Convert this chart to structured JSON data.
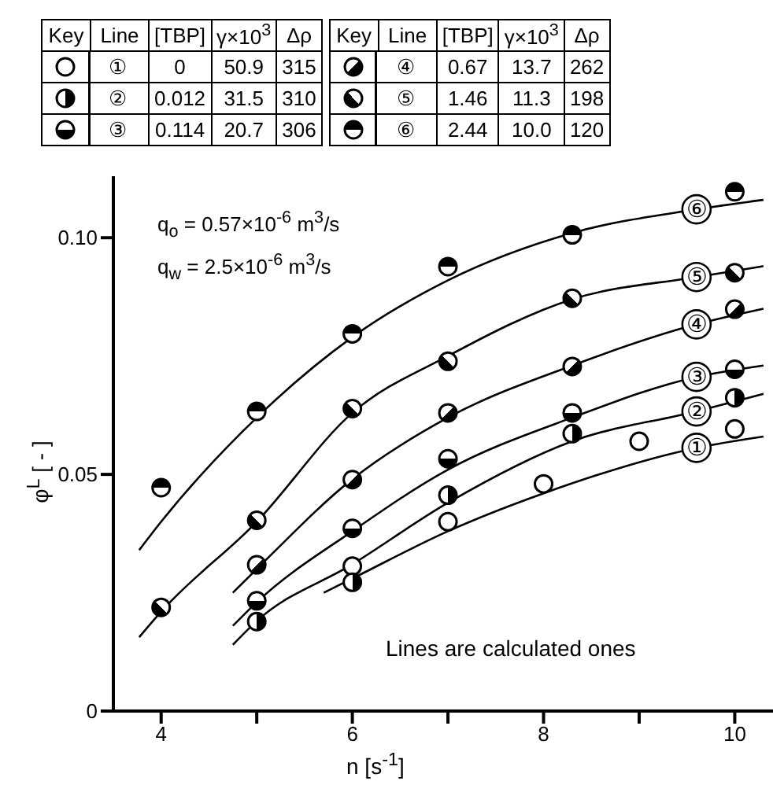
{
  "chart_data": {
    "type": "scatter",
    "xlabel": "n   [s$^{-1}$]",
    "ylabel": "φ$^{L}$  [ - ]",
    "marker": "circle",
    "legend": "top",
    "xlim": [
      3.5,
      10.4
    ],
    "xticks": [
      4,
      {
        "value": 5,
        "label": null
      },
      6,
      {
        "value": 7,
        "label": null
      },
      8,
      {
        "value": 9,
        "label": null
      },
      10
    ],
    "ylim": [
      0,
      0.113
    ],
    "yticks": [
      0,
      0.05,
      {
        "value": 0.1,
        "label": "0.10"
      }
    ],
    "annotations": [
      "Key",
      "Line",
      "[TBP]",
      "γ×10$^{3}$",
      "Δρ",
      "0",
      "50.9",
      "315",
      "0.012",
      "31.5",
      "310",
      "0.114",
      "20.7",
      "306",
      "0.67",
      "13.7",
      "262",
      "1.46",
      "11.3",
      "198",
      "2.44",
      "10.0",
      "120",
      "q$_{o}$ = 0.57×10$^{-6}$ m$^{3}$/s",
      "q$_{w}$ = 2.5×10$^{-6}$ m$^{3}$/s",
      "Lines are calculated ones"
    ],
    "series": [
      {
        "name": "①",
        "color": "#000000",
        "x": [
          6,
          7,
          8,
          9,
          10
        ],
        "values": [
          0.0306,
          0.04,
          0.048,
          0.057,
          0.0596
        ]
      },
      {
        "name": "②",
        "color": "#000000",
        "x": [
          5,
          6,
          7,
          8.3,
          10
        ],
        "values": [
          0.0189,
          0.0272,
          0.0456,
          0.0586,
          0.0662
        ]
      },
      {
        "name": "③",
        "color": "#000000",
        "x": [
          5,
          6,
          7,
          8.3,
          10
        ],
        "values": [
          0.0233,
          0.0386,
          0.0533,
          0.063,
          0.0722
        ]
      },
      {
        "name": "④",
        "color": "#000000",
        "x": [
          5,
          6,
          7,
          8.3,
          10
        ],
        "values": [
          0.0309,
          0.0489,
          0.063,
          0.0728,
          0.0849
        ]
      },
      {
        "name": "⑤",
        "color": "#000000",
        "x": [
          4,
          5,
          6,
          7,
          8.3,
          10
        ],
        "values": [
          0.0219,
          0.0403,
          0.0639,
          0.0739,
          0.0872,
          0.0926
        ]
      },
      {
        "name": "⑥",
        "color": "#000000",
        "x": [
          4,
          5,
          6,
          7,
          8.3,
          10
        ],
        "values": [
          0.0472,
          0.0633,
          0.0797,
          0.0939,
          0.1006,
          0.1097
        ]
      },
      {
        "type": "line",
        "marker": "none",
        "color": "#000000",
        "x": [
          5.7,
          6,
          7,
          8,
          9.6,
          10.3
        ],
        "values": [
          0.025,
          0.028,
          0.038,
          0.046,
          0.0556,
          0.058
        ]
      },
      {
        "type": "line",
        "marker": "none",
        "color": "#000000",
        "x": [
          4.75,
          5,
          6,
          7,
          8.3,
          9.6,
          10.3
        ],
        "values": [
          0.014,
          0.019,
          0.031,
          0.044,
          0.057,
          0.0633,
          0.067
        ]
      },
      {
        "type": "line",
        "marker": "none",
        "color": "#000000",
        "x": [
          4.75,
          5,
          6,
          7,
          8.3,
          9.6,
          10.3
        ],
        "values": [
          0.018,
          0.023,
          0.038,
          0.051,
          0.062,
          0.0706,
          0.073
        ]
      },
      {
        "type": "line",
        "marker": "none",
        "color": "#000000",
        "x": [
          4.75,
          5,
          6,
          7,
          8.3,
          9.6,
          10.3
        ],
        "values": [
          0.025,
          0.03,
          0.049,
          0.062,
          0.073,
          0.0817,
          0.085
        ]
      },
      {
        "type": "line",
        "marker": "none",
        "color": "#000000",
        "x": [
          3.77,
          4,
          5,
          6,
          7,
          8.3,
          9.6,
          10.3
        ],
        "values": [
          0.0156,
          0.021,
          0.04,
          0.063,
          0.075,
          0.087,
          0.0917,
          0.094
        ]
      },
      {
        "type": "line",
        "marker": "none",
        "color": "#000000",
        "x": [
          3.77,
          4,
          5,
          6,
          7,
          8.3,
          9.6,
          10.3
        ],
        "values": [
          0.034,
          0.04,
          0.062,
          0.079,
          0.091,
          0.101,
          0.106,
          0.108
        ]
      }
    ]
  }
}
